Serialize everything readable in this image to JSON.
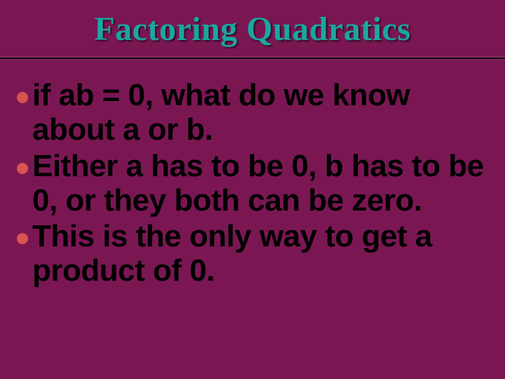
{
  "slide": {
    "background_color": "#7a1753",
    "title": {
      "text": "Factoring Quadratics",
      "color": "#1aa7a0",
      "font_family": "Times New Roman",
      "font_size_pt": 36,
      "font_weight": "bold"
    },
    "divider_color": "#000000",
    "bullet_color": "#d9534f",
    "text_color": "#000000",
    "body_font_size_pt": 33,
    "bullets": [
      {
        "text": "if ab = 0, what do we know about a or b."
      },
      {
        "text": "Either a has to be 0, b has to be 0, or they both can be zero."
      },
      {
        "text": "This is the only way to get a product of 0."
      }
    ]
  }
}
